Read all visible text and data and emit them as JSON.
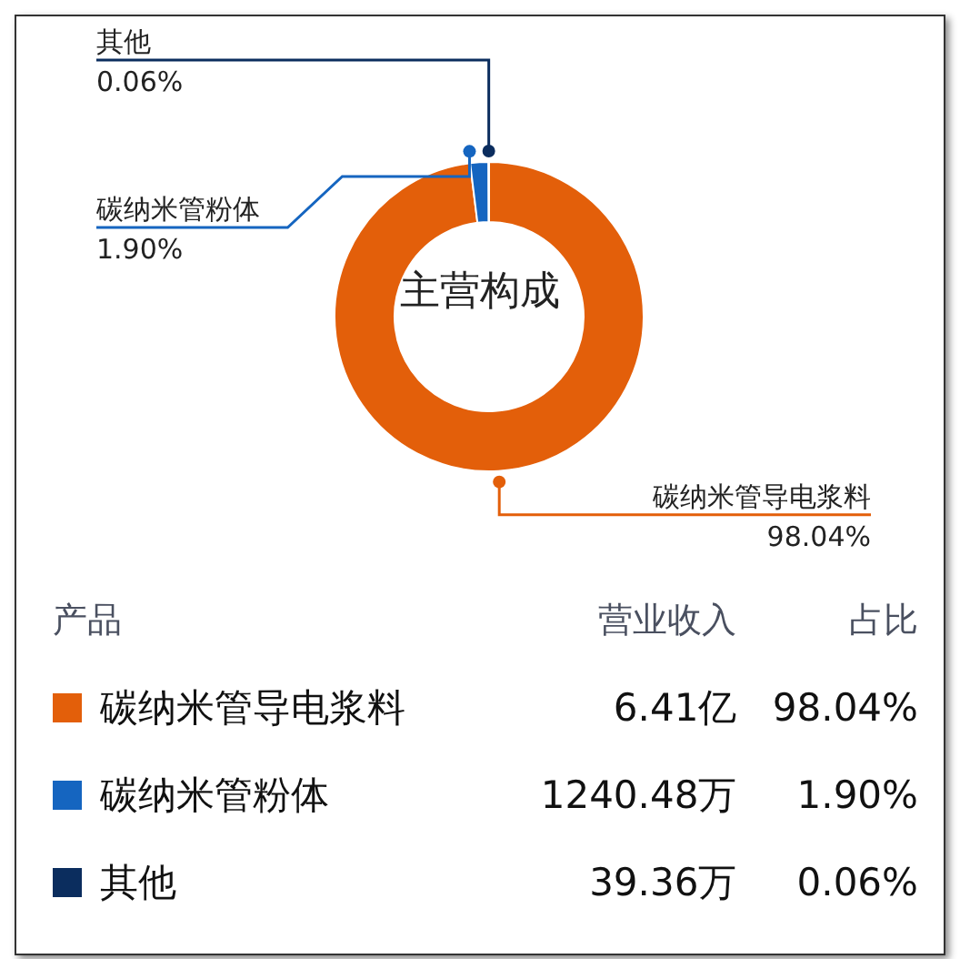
{
  "chart_data": {
    "type": "donut",
    "title": "主营构成",
    "categories": [
      "碳纳米管导电浆料",
      "碳纳米管粉体",
      "其他"
    ],
    "values": [
      98.04,
      1.9,
      0.06
    ],
    "colors": [
      "#e35f0a",
      "#1565c0",
      "#0b2d5e"
    ],
    "value_labels": [
      "98.04%",
      "1.90%",
      "0.06%"
    ],
    "legend": "bottom",
    "annotations": [
      "产品",
      "营业收入",
      "占比",
      "6.41亿",
      "1240.48万",
      "39.36万"
    ]
  }
}
